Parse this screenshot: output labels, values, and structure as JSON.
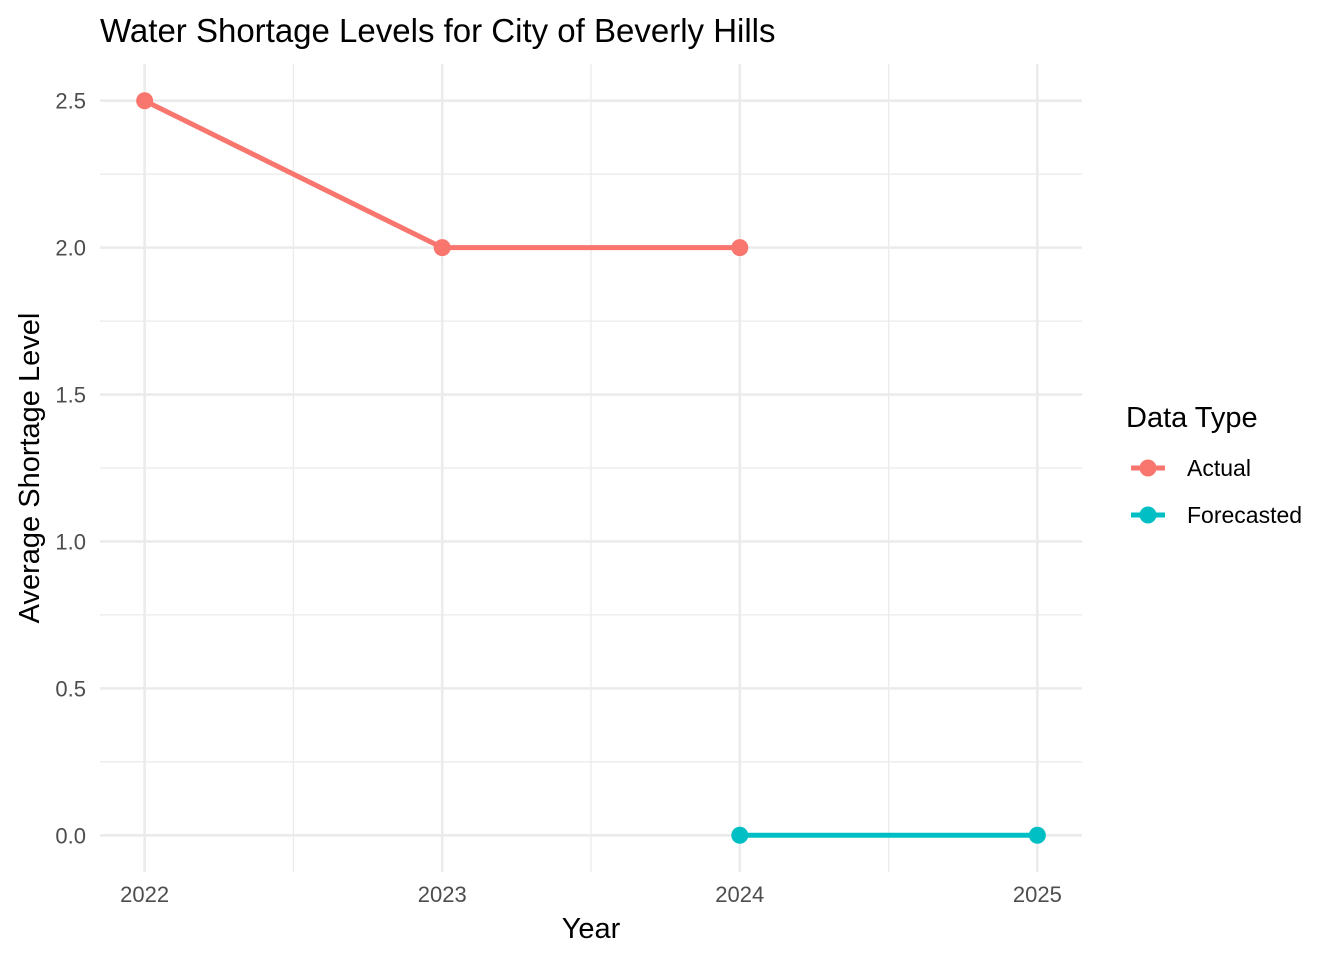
{
  "chart_data": {
    "type": "line",
    "title": "Water Shortage Levels for City of Beverly Hills",
    "xlabel": "Year",
    "ylabel": "Average Shortage Level",
    "x_ticks": [
      "2022",
      "2023",
      "2024",
      "2025"
    ],
    "y_ticks": [
      "0.0",
      "0.5",
      "1.0",
      "1.5",
      "2.0",
      "2.5"
    ],
    "xlim": [
      2021.85,
      2025.15
    ],
    "ylim": [
      -0.125,
      2.625
    ],
    "grid": true,
    "legend": {
      "title": "Data Type",
      "position": "right"
    },
    "series": [
      {
        "name": "Actual",
        "color": "#F8766D",
        "x": [
          2022,
          2023,
          2024
        ],
        "values": [
          2.5,
          2.0,
          2.0
        ]
      },
      {
        "name": "Forecasted",
        "color": "#00BFC4",
        "x": [
          2024,
          2025
        ],
        "values": [
          0.0,
          0.0
        ]
      }
    ]
  }
}
